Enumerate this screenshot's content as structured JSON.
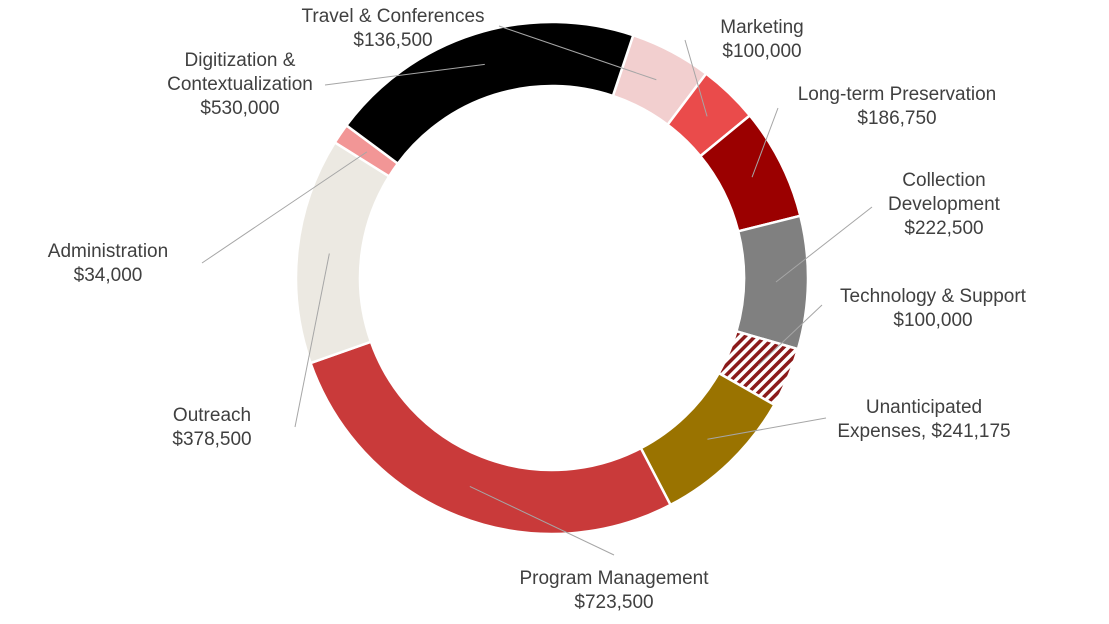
{
  "chart_data": {
    "type": "pie",
    "variant": "donut",
    "title": "",
    "slices": [
      {
        "label": "Travel & Conferences",
        "value": 136500,
        "display": "$136,500",
        "color": "#f2cfcf"
      },
      {
        "label": "Marketing",
        "value": 100000,
        "display": "$100,000",
        "color": "#ea4b4b"
      },
      {
        "label": "Long-term Preservation",
        "value": 186750,
        "display": "$186,750",
        "color": "#9b0000"
      },
      {
        "label": "Collection Development",
        "value": 222500,
        "display": "$222,500",
        "color": "#808080"
      },
      {
        "label": "Technology & Support",
        "value": 100000,
        "display": "$100,000",
        "color": "#8b1a1a",
        "pattern": "diagonal-stripes"
      },
      {
        "label": "Unanticipated Expenses",
        "value": 241175,
        "display": "$241,175",
        "color": "#9a7300"
      },
      {
        "label": "Program Management",
        "value": 723500,
        "display": "$723,500",
        "color": "#c93a3a"
      },
      {
        "label": "Outreach",
        "value": 378500,
        "display": "$378,500",
        "color": "#ece9e2"
      },
      {
        "label": "Administration",
        "value": 34000,
        "display": "$34,000",
        "color": "#f29696"
      },
      {
        "label": "Digitization & Contextualization",
        "value": 530000,
        "display": "$530,000",
        "color": "#000000"
      }
    ],
    "data_labels": [
      {
        "lines": [
          "Travel & Conferences",
          "$136,500"
        ]
      },
      {
        "lines": [
          "Marketing",
          "$100,000"
        ]
      },
      {
        "lines": [
          "Long-term Preservation",
          "$186,750"
        ]
      },
      {
        "lines": [
          "Collection",
          "Development",
          "$222,500"
        ]
      },
      {
        "lines": [
          "Technology & Support",
          "$100,000"
        ]
      },
      {
        "lines": [
          "Unanticipated",
          "Expenses, $241,175"
        ]
      },
      {
        "lines": [
          "Program Management",
          "$723,500"
        ]
      },
      {
        "lines": [
          "Outreach",
          "$378,500"
        ]
      },
      {
        "lines": [
          "Administration",
          "$34,000"
        ]
      },
      {
        "lines": [
          "Digitization &",
          "Contextualization",
          "$530,000"
        ]
      }
    ],
    "legend": "none"
  }
}
